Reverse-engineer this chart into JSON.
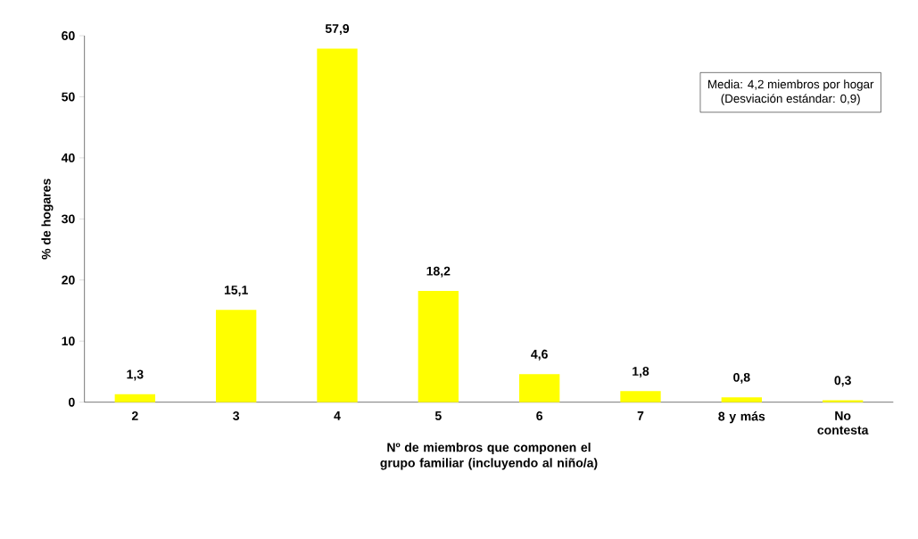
{
  "chart_data": {
    "type": "bar",
    "categories": [
      "2",
      "3",
      "4",
      "5",
      "6",
      "7",
      "8 y más",
      "No contesta"
    ],
    "values": [
      1.3,
      15.1,
      57.9,
      18.2,
      4.6,
      1.8,
      0.8,
      0.3
    ],
    "value_labels": [
      "1,3",
      "15,1",
      "57,9",
      "18,2",
      "4,6",
      "1,8",
      "0,8",
      "0,3"
    ],
    "color": "#ffff00",
    "ylim": [
      0,
      60
    ],
    "yticks": [
      0,
      10,
      20,
      30,
      40,
      50,
      60
    ],
    "xlabel": "Nº de miembros que componen el grupo familiar (incluyendo al niño/a)",
    "ylabel": "% de hogares",
    "annotations": [
      "Media: 4,2 miembros por hogar",
      "(Desviación estándar: 0,9)"
    ]
  }
}
